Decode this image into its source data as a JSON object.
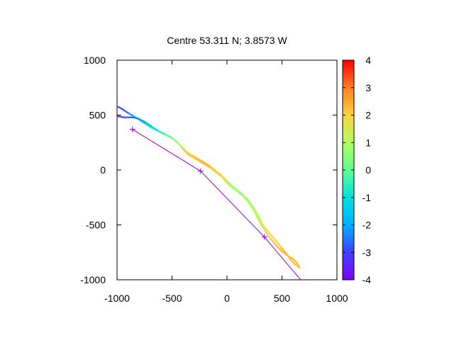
{
  "chart_data": {
    "type": "line",
    "title": "Centre 53.311 N; 3.8573  W",
    "xlabel": "",
    "ylabel": "",
    "xlim": [
      -1000,
      1000
    ],
    "ylim": [
      -1000,
      1000
    ],
    "xticks": [
      -1000,
      -500,
      0,
      500,
      1000
    ],
    "yticks": [
      -1000,
      -500,
      0,
      500,
      1000
    ],
    "grid": false,
    "colorbar": {
      "range": [
        -4,
        4
      ],
      "ticks": [
        -4,
        -3,
        -2,
        -1,
        0,
        1,
        2,
        3,
        4
      ],
      "palette": "rainbow",
      "colors": [
        "#8000ff",
        "#4040ff",
        "#00b0ff",
        "#00e0e0",
        "#60ff90",
        "#b0ff60",
        "#ffd040",
        "#ff8020",
        "#ff0000"
      ]
    },
    "series": [
      {
        "kind": "colored-track",
        "points": [
          [
            -1000,
            580,
            -3.2
          ],
          [
            -960,
            560,
            -3.0
          ],
          [
            -900,
            520,
            -2.6
          ],
          [
            -850,
            490,
            -2.2
          ],
          [
            -800,
            460,
            -1.6
          ],
          [
            -740,
            420,
            -1.0
          ],
          [
            -680,
            380,
            -0.5
          ],
          [
            -620,
            350,
            -0.2
          ],
          [
            -560,
            320,
            0.2
          ],
          [
            -500,
            290,
            0.8
          ],
          [
            -450,
            250,
            1.5
          ],
          [
            -400,
            190,
            2.0
          ],
          [
            -350,
            140,
            2.2
          ],
          [
            -300,
            110,
            2.1
          ],
          [
            -250,
            80,
            2.3
          ],
          [
            -200,
            50,
            2.3
          ],
          [
            -150,
            20,
            2.2
          ],
          [
            -100,
            -20,
            2.1
          ],
          [
            -50,
            -60,
            1.8
          ],
          [
            0,
            -120,
            1.4
          ],
          [
            50,
            -160,
            0.9
          ],
          [
            100,
            -200,
            0.8
          ],
          [
            150,
            -240,
            0.9
          ],
          [
            200,
            -300,
            1.0
          ],
          [
            250,
            -380,
            1.2
          ],
          [
            300,
            -480,
            1.5
          ],
          [
            350,
            -560,
            1.9
          ],
          [
            400,
            -630,
            2.1
          ],
          [
            450,
            -690,
            2.3
          ],
          [
            500,
            -740,
            2.4
          ],
          [
            550,
            -780,
            2.4
          ],
          [
            600,
            -810,
            2.4
          ],
          [
            640,
            -850,
            2.3
          ],
          [
            660,
            -890,
            2.2
          ],
          [
            620,
            -860,
            2.1
          ],
          [
            580,
            -820,
            2.2
          ],
          [
            540,
            -760,
            2.3
          ],
          [
            490,
            -700,
            2.2
          ],
          [
            440,
            -640,
            2.0
          ],
          [
            390,
            -580,
            1.8
          ],
          [
            340,
            -520,
            1.5
          ],
          [
            290,
            -430,
            1.1
          ],
          [
            240,
            -340,
            0.9
          ],
          [
            190,
            -270,
            0.7
          ],
          [
            140,
            -220,
            0.6
          ],
          [
            90,
            -180,
            0.6
          ],
          [
            40,
            -140,
            0.9
          ],
          [
            -10,
            -90,
            1.5
          ],
          [
            -60,
            -40,
            1.9
          ],
          [
            -110,
            0,
            2.0
          ],
          [
            -160,
            40,
            2.2
          ],
          [
            -210,
            70,
            2.3
          ],
          [
            -260,
            100,
            2.2
          ],
          [
            -310,
            130,
            2.1
          ],
          [
            -360,
            160,
            1.9
          ],
          [
            -410,
            210,
            1.2
          ],
          [
            -460,
            260,
            0.6
          ],
          [
            -510,
            300,
            0.2
          ],
          [
            -570,
            330,
            -0.3
          ],
          [
            -630,
            360,
            -0.7
          ],
          [
            -690,
            400,
            -1.3
          ],
          [
            -750,
            440,
            -1.9
          ],
          [
            -810,
            470,
            -2.4
          ],
          [
            -870,
            480,
            -2.7
          ],
          [
            -940,
            480,
            -3.0
          ],
          [
            -1000,
            490,
            -3.3
          ]
        ]
      },
      {
        "kind": "line",
        "color": "#9400d3",
        "points": [
          [
            -860,
            370
          ],
          [
            -240,
            -10
          ],
          [
            340,
            -610
          ],
          [
            670,
            -1000
          ]
        ],
        "markers": [
          [
            -860,
            370
          ],
          [
            -240,
            -10
          ],
          [
            340,
            -610
          ]
        ]
      }
    ]
  }
}
